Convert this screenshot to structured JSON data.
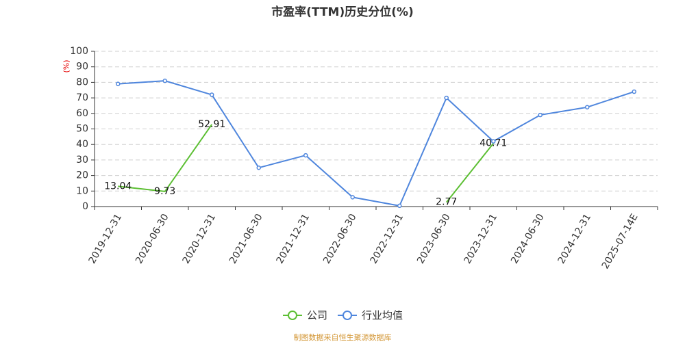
{
  "chart_data": {
    "type": "line",
    "title": "市盈率(TTM)历史分位(%)",
    "xlabel": "",
    "ylabel": "(%)",
    "ylim": [
      0,
      100
    ],
    "yticks": [
      0,
      10,
      20,
      30,
      40,
      50,
      60,
      70,
      80,
      90,
      100
    ],
    "categories": [
      "2019-12-31",
      "2020-06-30",
      "2020-12-31",
      "2021-06-30",
      "2021-12-31",
      "2022-06-30",
      "2022-12-31",
      "2023-06-30",
      "2023-12-31",
      "2024-06-30",
      "2024-12-31",
      "2025-07-14E"
    ],
    "grid": true,
    "legend_position": "bottom",
    "series": [
      {
        "name": "公司",
        "color": "#5cbf33",
        "values": [
          13.04,
          9.73,
          52.91,
          null,
          null,
          null,
          null,
          2.77,
          40.71,
          null,
          null,
          null
        ],
        "show_data_labels": true
      },
      {
        "name": "行业均值",
        "color": "#4f86dd",
        "values": [
          79,
          81,
          72,
          25,
          33,
          6,
          0.5,
          70,
          42,
          59,
          64,
          74
        ],
        "show_data_labels": false
      }
    ]
  },
  "footer": {
    "source": "制图数据来自恒生聚源数据库"
  }
}
